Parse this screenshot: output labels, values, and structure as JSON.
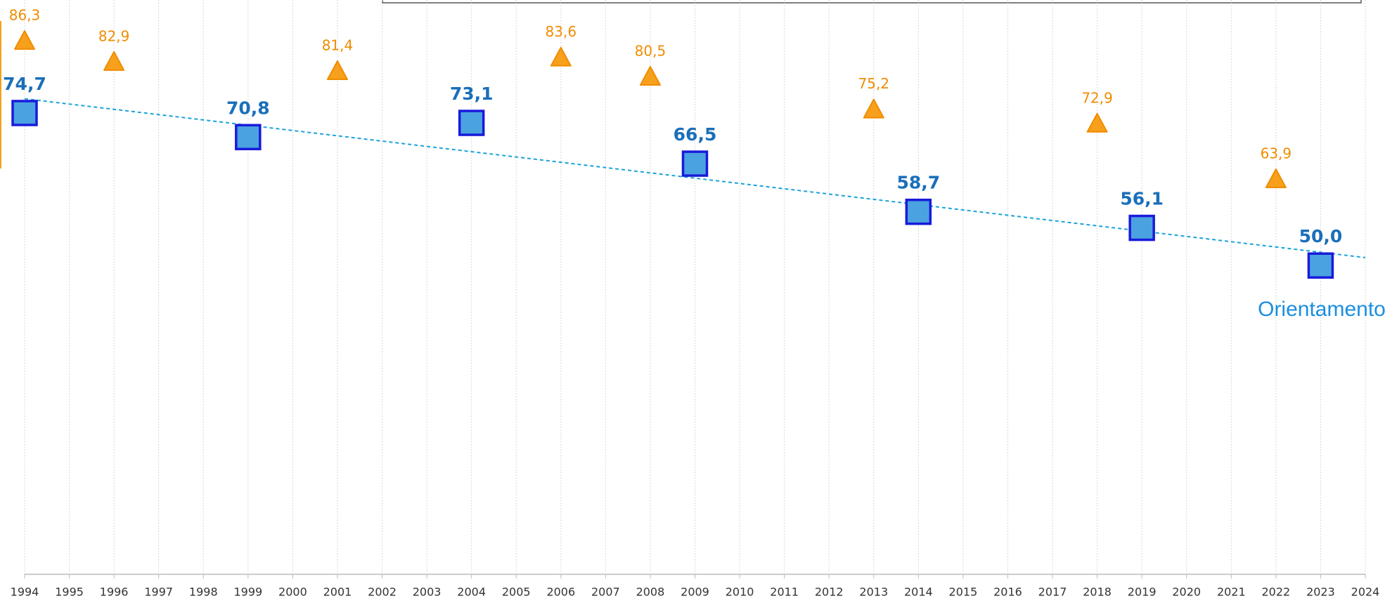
{
  "chart_data": {
    "type": "scatter",
    "annotations": [
      "Orientamento"
    ],
    "xlim": [
      1994,
      2024
    ],
    "xticks": [
      1994,
      1995,
      1996,
      1997,
      1998,
      1999,
      2000,
      2001,
      2002,
      2003,
      2004,
      2005,
      2006,
      2007,
      2008,
      2009,
      2010,
      2011,
      2012,
      2013,
      2014,
      2015,
      2016,
      2017,
      2018,
      2019,
      2020,
      2021,
      2022,
      2023,
      2024
    ],
    "ylim": [
      0,
      93
    ],
    "grid": true,
    "trendline": true,
    "series": [
      {
        "color": "#4aa3e0",
        "marker": "square",
        "x": [
          1994,
          1999,
          2004,
          2009,
          2014,
          2019,
          2023
        ],
        "values": [
          74.7,
          70.8,
          73.1,
          66.5,
          58.7,
          56.1,
          50.0
        ],
        "value_labels": [
          "74,7",
          "70,8",
          "73,1",
          "66,5",
          "58,7",
          "56,1",
          "50,0"
        ]
      },
      {
        "color": "#f7a01c",
        "marker": "triangle",
        "x": [
          1994,
          1996,
          2001,
          2006,
          2008,
          2013,
          2018,
          2022
        ],
        "values": [
          86.3,
          82.9,
          81.4,
          83.6,
          80.5,
          75.2,
          72.9,
          63.9
        ],
        "value_labels": [
          "86,3",
          "82,9",
          "81,4",
          "83,6",
          "80,5",
          "75,2",
          "72,9",
          "63,9"
        ]
      }
    ]
  }
}
